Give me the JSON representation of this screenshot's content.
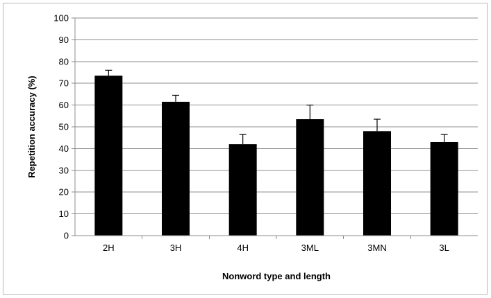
{
  "chart_data": {
    "type": "bar",
    "title": "",
    "xlabel": "Nonword type and length",
    "ylabel": "Repetition accuracy  (%)",
    "categories": [
      "2H",
      "3H",
      "4H",
      "3ML",
      "3MN",
      "3L"
    ],
    "values": [
      73.5,
      61.5,
      42,
      53.5,
      48,
      43
    ],
    "error_plus": [
      2.5,
      3,
      4.5,
      6.5,
      5.5,
      3.5
    ],
    "ylim": [
      0,
      100
    ],
    "yticks": [
      0,
      10,
      20,
      30,
      40,
      50,
      60,
      70,
      80,
      90,
      100
    ],
    "grid": true,
    "bar_color": "#000000",
    "grid_color": "#8c8c8c"
  }
}
